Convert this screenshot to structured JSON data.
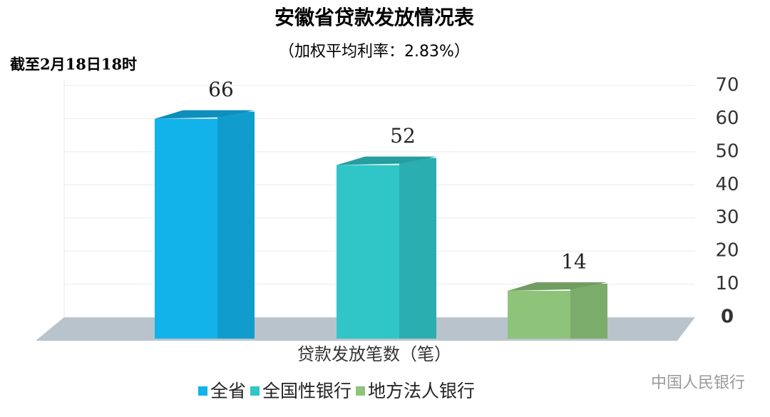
{
  "chart_data": {
    "type": "bar3d",
    "title": "安徽省贷款发放情况表",
    "subtitle": "（加权平均利率：2.83%）",
    "annotation": "截至2月18日18时",
    "x_label": "贷款发放笔数（笔）",
    "watermark": "中国人民银行",
    "categories": [
      null
    ],
    "series": [
      {
        "name": "全省",
        "color": "#12b2ea",
        "values": [
          66
        ]
      },
      {
        "name": "全国性银行",
        "color": "#30c6c8",
        "values": [
          52
        ]
      },
      {
        "name": "地方法人银行",
        "color": "#8dc47a",
        "values": [
          14
        ]
      }
    ],
    "ylim": [
      0,
      70
    ],
    "yticks": [
      0,
      10,
      20,
      30,
      40,
      50,
      60,
      70
    ],
    "grid": true,
    "legend": "bottom"
  }
}
